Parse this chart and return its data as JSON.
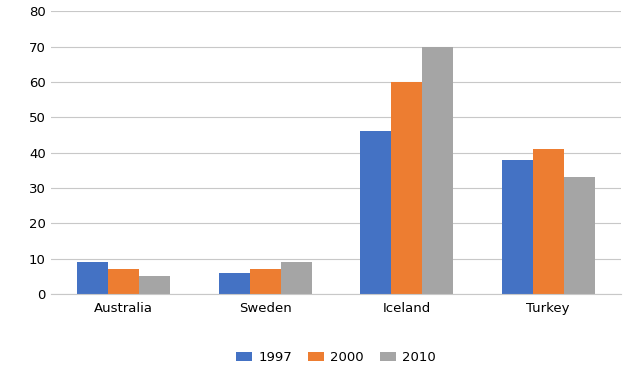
{
  "categories": [
    "Australia",
    "Sweden",
    "Iceland",
    "Turkey"
  ],
  "series": {
    "1997": [
      9,
      6,
      46,
      38
    ],
    "2000": [
      7,
      7,
      60,
      41
    ],
    "2010": [
      5,
      9,
      70,
      33
    ]
  },
  "bar_colors": {
    "1997": "#4472C4",
    "2000": "#ED7D31",
    "2010": "#A5A5A5"
  },
  "legend_labels": [
    "1997",
    "2000",
    "2010"
  ],
  "ylim": [
    0,
    80
  ],
  "yticks": [
    0,
    10,
    20,
    30,
    40,
    50,
    60,
    70,
    80
  ],
  "background_color": "#ffffff",
  "grid_color": "#c8c8c8",
  "bar_width": 0.22,
  "figsize": [
    6.4,
    3.77
  ],
  "dpi": 100
}
